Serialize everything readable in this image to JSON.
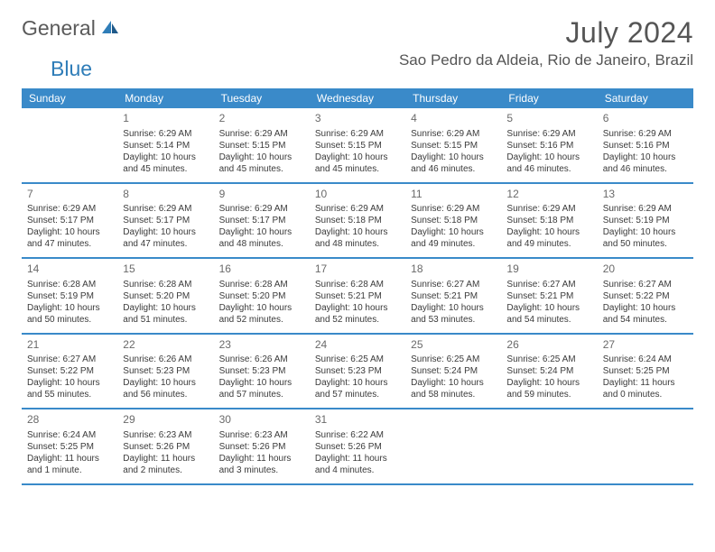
{
  "logo": {
    "text_general": "General",
    "text_blue": "Blue"
  },
  "header": {
    "month_title": "July 2024",
    "location": "Sao Pedro da Aldeia, Rio de Janeiro, Brazil"
  },
  "calendar": {
    "header_bg": "#3a8ac9",
    "header_text_color": "#ffffff",
    "border_color": "#3a8ac9",
    "text_color": "#3a3a3a",
    "day_names": [
      "Sunday",
      "Monday",
      "Tuesday",
      "Wednesday",
      "Thursday",
      "Friday",
      "Saturday"
    ],
    "weeks": [
      [
        null,
        {
          "date": "1",
          "sunrise": "Sunrise: 6:29 AM",
          "sunset": "Sunset: 5:14 PM",
          "daylight": "Daylight: 10 hours and 45 minutes."
        },
        {
          "date": "2",
          "sunrise": "Sunrise: 6:29 AM",
          "sunset": "Sunset: 5:15 PM",
          "daylight": "Daylight: 10 hours and 45 minutes."
        },
        {
          "date": "3",
          "sunrise": "Sunrise: 6:29 AM",
          "sunset": "Sunset: 5:15 PM",
          "daylight": "Daylight: 10 hours and 45 minutes."
        },
        {
          "date": "4",
          "sunrise": "Sunrise: 6:29 AM",
          "sunset": "Sunset: 5:15 PM",
          "daylight": "Daylight: 10 hours and 46 minutes."
        },
        {
          "date": "5",
          "sunrise": "Sunrise: 6:29 AM",
          "sunset": "Sunset: 5:16 PM",
          "daylight": "Daylight: 10 hours and 46 minutes."
        },
        {
          "date": "6",
          "sunrise": "Sunrise: 6:29 AM",
          "sunset": "Sunset: 5:16 PM",
          "daylight": "Daylight: 10 hours and 46 minutes."
        }
      ],
      [
        {
          "date": "7",
          "sunrise": "Sunrise: 6:29 AM",
          "sunset": "Sunset: 5:17 PM",
          "daylight": "Daylight: 10 hours and 47 minutes."
        },
        {
          "date": "8",
          "sunrise": "Sunrise: 6:29 AM",
          "sunset": "Sunset: 5:17 PM",
          "daylight": "Daylight: 10 hours and 47 minutes."
        },
        {
          "date": "9",
          "sunrise": "Sunrise: 6:29 AM",
          "sunset": "Sunset: 5:17 PM",
          "daylight": "Daylight: 10 hours and 48 minutes."
        },
        {
          "date": "10",
          "sunrise": "Sunrise: 6:29 AM",
          "sunset": "Sunset: 5:18 PM",
          "daylight": "Daylight: 10 hours and 48 minutes."
        },
        {
          "date": "11",
          "sunrise": "Sunrise: 6:29 AM",
          "sunset": "Sunset: 5:18 PM",
          "daylight": "Daylight: 10 hours and 49 minutes."
        },
        {
          "date": "12",
          "sunrise": "Sunrise: 6:29 AM",
          "sunset": "Sunset: 5:18 PM",
          "daylight": "Daylight: 10 hours and 49 minutes."
        },
        {
          "date": "13",
          "sunrise": "Sunrise: 6:29 AM",
          "sunset": "Sunset: 5:19 PM",
          "daylight": "Daylight: 10 hours and 50 minutes."
        }
      ],
      [
        {
          "date": "14",
          "sunrise": "Sunrise: 6:28 AM",
          "sunset": "Sunset: 5:19 PM",
          "daylight": "Daylight: 10 hours and 50 minutes."
        },
        {
          "date": "15",
          "sunrise": "Sunrise: 6:28 AM",
          "sunset": "Sunset: 5:20 PM",
          "daylight": "Daylight: 10 hours and 51 minutes."
        },
        {
          "date": "16",
          "sunrise": "Sunrise: 6:28 AM",
          "sunset": "Sunset: 5:20 PM",
          "daylight": "Daylight: 10 hours and 52 minutes."
        },
        {
          "date": "17",
          "sunrise": "Sunrise: 6:28 AM",
          "sunset": "Sunset: 5:21 PM",
          "daylight": "Daylight: 10 hours and 52 minutes."
        },
        {
          "date": "18",
          "sunrise": "Sunrise: 6:27 AM",
          "sunset": "Sunset: 5:21 PM",
          "daylight": "Daylight: 10 hours and 53 minutes."
        },
        {
          "date": "19",
          "sunrise": "Sunrise: 6:27 AM",
          "sunset": "Sunset: 5:21 PM",
          "daylight": "Daylight: 10 hours and 54 minutes."
        },
        {
          "date": "20",
          "sunrise": "Sunrise: 6:27 AM",
          "sunset": "Sunset: 5:22 PM",
          "daylight": "Daylight: 10 hours and 54 minutes."
        }
      ],
      [
        {
          "date": "21",
          "sunrise": "Sunrise: 6:27 AM",
          "sunset": "Sunset: 5:22 PM",
          "daylight": "Daylight: 10 hours and 55 minutes."
        },
        {
          "date": "22",
          "sunrise": "Sunrise: 6:26 AM",
          "sunset": "Sunset: 5:23 PM",
          "daylight": "Daylight: 10 hours and 56 minutes."
        },
        {
          "date": "23",
          "sunrise": "Sunrise: 6:26 AM",
          "sunset": "Sunset: 5:23 PM",
          "daylight": "Daylight: 10 hours and 57 minutes."
        },
        {
          "date": "24",
          "sunrise": "Sunrise: 6:25 AM",
          "sunset": "Sunset: 5:23 PM",
          "daylight": "Daylight: 10 hours and 57 minutes."
        },
        {
          "date": "25",
          "sunrise": "Sunrise: 6:25 AM",
          "sunset": "Sunset: 5:24 PM",
          "daylight": "Daylight: 10 hours and 58 minutes."
        },
        {
          "date": "26",
          "sunrise": "Sunrise: 6:25 AM",
          "sunset": "Sunset: 5:24 PM",
          "daylight": "Daylight: 10 hours and 59 minutes."
        },
        {
          "date": "27",
          "sunrise": "Sunrise: 6:24 AM",
          "sunset": "Sunset: 5:25 PM",
          "daylight": "Daylight: 11 hours and 0 minutes."
        }
      ],
      [
        {
          "date": "28",
          "sunrise": "Sunrise: 6:24 AM",
          "sunset": "Sunset: 5:25 PM",
          "daylight": "Daylight: 11 hours and 1 minute."
        },
        {
          "date": "29",
          "sunrise": "Sunrise: 6:23 AM",
          "sunset": "Sunset: 5:26 PM",
          "daylight": "Daylight: 11 hours and 2 minutes."
        },
        {
          "date": "30",
          "sunrise": "Sunrise: 6:23 AM",
          "sunset": "Sunset: 5:26 PM",
          "daylight": "Daylight: 11 hours and 3 minutes."
        },
        {
          "date": "31",
          "sunrise": "Sunrise: 6:22 AM",
          "sunset": "Sunset: 5:26 PM",
          "daylight": "Daylight: 11 hours and 4 minutes."
        },
        null,
        null,
        null
      ]
    ]
  }
}
